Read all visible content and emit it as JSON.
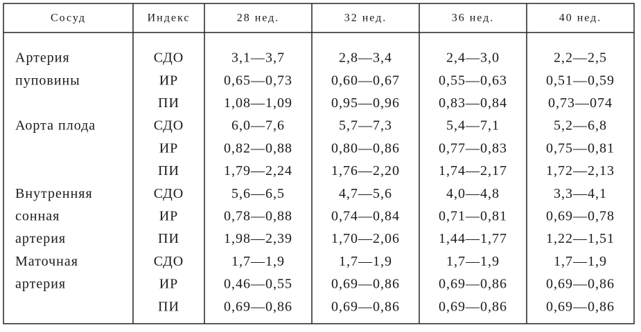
{
  "table": {
    "header": [
      "Сосуд",
      "Индекс",
      "28 нед.",
      "32 нед.",
      "36 нед.",
      "40 нед."
    ],
    "groups": [
      {
        "vessel": [
          "Артерия",
          "пуповины"
        ],
        "rows": [
          {
            "index": "СДО",
            "values": [
              "3,1—3,7",
              "2,8—3,4",
              "2,4—3,0",
              "2,2—2,5"
            ]
          },
          {
            "index": "ИР",
            "values": [
              "0,65—0,73",
              "0,60—0,67",
              "0,55—0,63",
              "0,51—0,59"
            ]
          },
          {
            "index": "ПИ",
            "values": [
              "1,08—1,09",
              "0,95—0,96",
              "0,83—0,84",
              "0,73—074"
            ]
          }
        ]
      },
      {
        "vessel": [
          "Аорта плода"
        ],
        "rows": [
          {
            "index": "СДО",
            "values": [
              "6,0—7,6",
              "5,7—7,3",
              "5,4—7,1",
              "5,2—6,8"
            ]
          },
          {
            "index": "ИР",
            "values": [
              "0,82—0,88",
              "0,80—0,86",
              "0,77—0,83",
              "0,75—0,81"
            ]
          },
          {
            "index": "ПИ",
            "values": [
              "1,79—2,24",
              "1,76—2,20",
              "1,74—2,17",
              "1,72—2,13"
            ]
          }
        ]
      },
      {
        "vessel": [
          "Внутренняя",
          "сонная",
          "артерия"
        ],
        "rows": [
          {
            "index": "СДО",
            "values": [
              "5,6—6,5",
              "4,7—5,6",
              "4,0—4,8",
              "3,3—4,1"
            ]
          },
          {
            "index": "ИР",
            "values": [
              "0,78—0,88",
              "0,74—0,84",
              "0,71—0,81",
              "0,69—0,78"
            ]
          },
          {
            "index": "ПИ",
            "values": [
              "1,98—2,39",
              "1,70—2,06",
              "1,44—1,77",
              "1,22—1,51"
            ]
          }
        ]
      },
      {
        "vessel": [
          "Маточная",
          "артерия"
        ],
        "rows": [
          {
            "index": "СДО",
            "values": [
              "1,7—1,9",
              "1,7—1,9",
              "1,7—1,9",
              "1,7—1,9"
            ]
          },
          {
            "index": "ИР",
            "values": [
              "0,46—0,55",
              "0,69—0,86",
              "0,69—0,86",
              "0,69—0,86"
            ]
          },
          {
            "index": "ПИ",
            "values": [
              "0,69—0,86",
              "0,69—0,86",
              "0,69—0,86",
              "0,69—0,86"
            ]
          }
        ]
      }
    ]
  }
}
